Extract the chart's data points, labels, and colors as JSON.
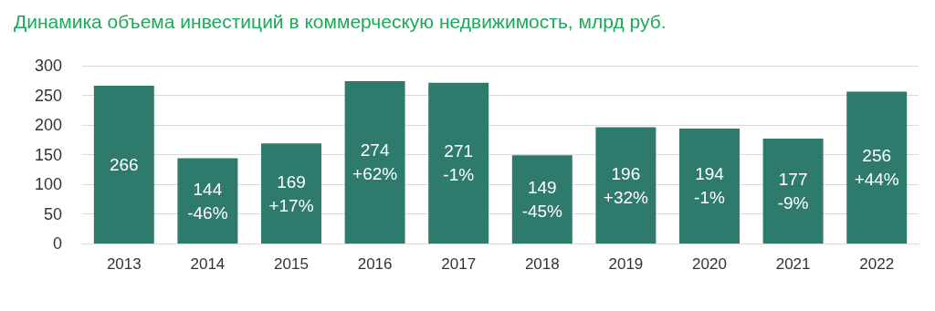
{
  "chart_data": {
    "type": "bar",
    "title": "Динамика объема инвестиций в коммерческую недвижимость, млрд руб.",
    "categories": [
      "2013",
      "2014",
      "2015",
      "2016",
      "2017",
      "2018",
      "2019",
      "2020",
      "2021",
      "2022"
    ],
    "values": [
      266,
      144,
      169,
      274,
      271,
      149,
      196,
      194,
      177,
      256
    ],
    "value_labels": [
      "266",
      "144\n-46%",
      "169\n+17%",
      "274\n+62%",
      "271\n-1%",
      "149\n-45%",
      "196\n+32%",
      "194\n-1%",
      "177\n-9%",
      "256\n+44%"
    ],
    "color": "#2e7a6c",
    "ylim": [
      0,
      300
    ],
    "yticks": [
      0,
      50,
      100,
      150,
      200,
      250,
      300
    ],
    "grid": "y"
  }
}
